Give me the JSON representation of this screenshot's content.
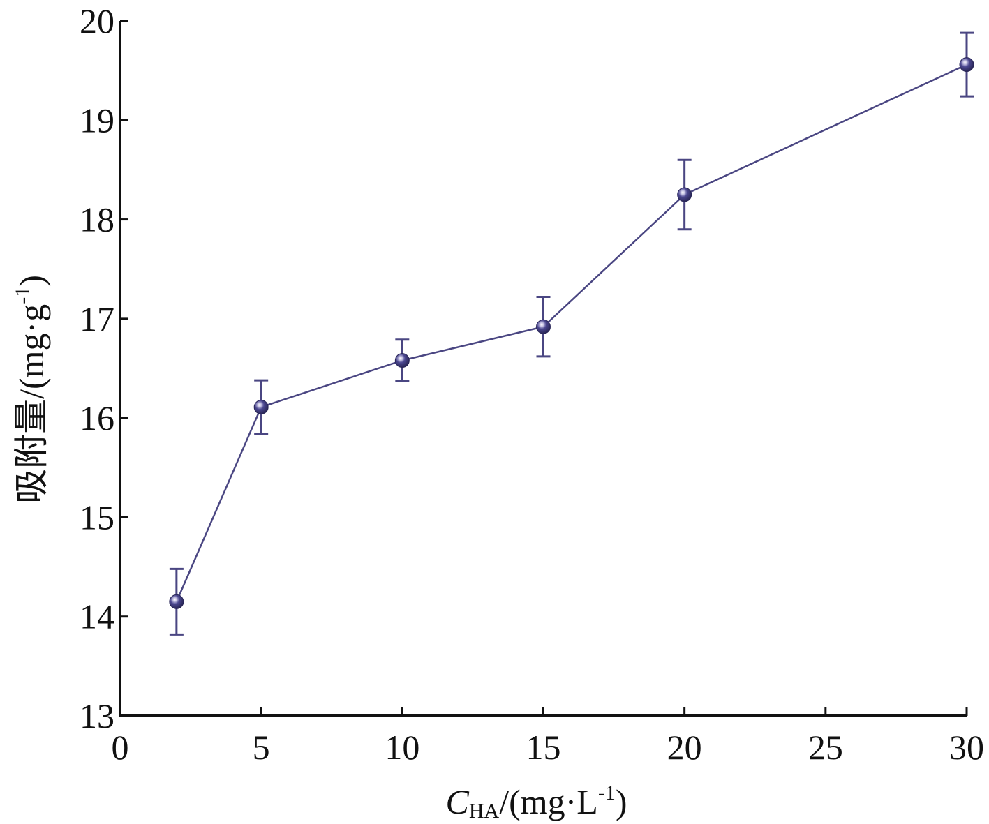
{
  "chart_data": {
    "type": "line",
    "xlabel": {
      "main": "C",
      "sub": "HA",
      "unit_prefix": "/(mg·L",
      "unit_sup": "-1",
      "unit_suffix": ")"
    },
    "ylabel": {
      "main": "吸附量/(mg·g",
      "sup": "-1",
      "suffix": ")"
    },
    "x_ticks": [
      0,
      5,
      10,
      15,
      20,
      25,
      30
    ],
    "x_tick_positions": [
      0,
      5,
      10,
      15,
      20,
      25,
      30
    ],
    "y_ticks": [
      13,
      14,
      15,
      16,
      17,
      18,
      19,
      20
    ],
    "xlim": [
      0,
      30
    ],
    "ylim": [
      13,
      20
    ],
    "grid": false,
    "series": [
      {
        "color": "#4a4682",
        "x": [
          2,
          5,
          10,
          15,
          20,
          30
        ],
        "y": [
          14.15,
          16.11,
          16.58,
          16.92,
          18.25,
          19.56
        ],
        "err": [
          0.33,
          0.27,
          0.21,
          0.3,
          0.35,
          0.32
        ]
      }
    ]
  }
}
